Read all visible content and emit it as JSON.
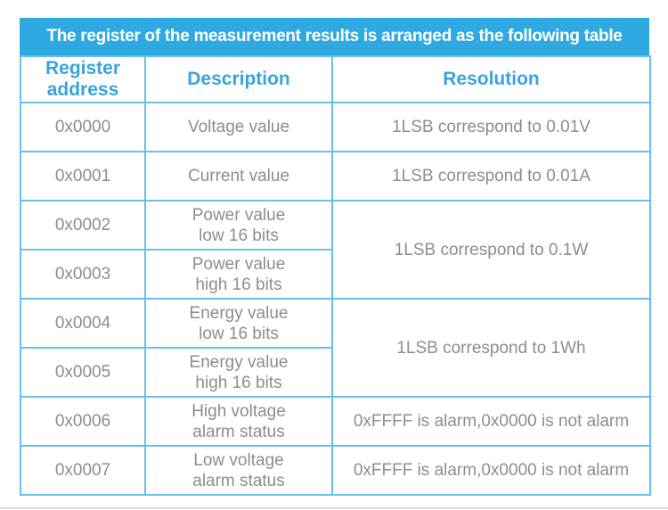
{
  "title": "The register of the measurement results is arranged as the following table",
  "columns": [
    {
      "label": "Register\naddress"
    },
    {
      "label": "Description"
    },
    {
      "label": "Resolution"
    }
  ],
  "rows": [
    {
      "address": "0x0000",
      "description": "Voltage value",
      "resolution": "1LSB correspond to 0.01V"
    },
    {
      "address": "0x0001",
      "description": "Current value",
      "resolution": "1LSB correspond to 0.01A"
    },
    {
      "address": "0x0002",
      "description": "Power value\nlow 16 bits",
      "resolution": "1LSB correspond to 0.1W"
    },
    {
      "address": "0x0003",
      "description": "Power value\nhigh 16 bits"
    },
    {
      "address": "0x0004",
      "description": "Energy value\nlow 16 bits",
      "resolution": "1LSB correspond to 1Wh"
    },
    {
      "address": "0x0005",
      "description": "Energy value\nhigh 16 bits"
    },
    {
      "address": "0x0006",
      "description": "High voltage\nalarm status",
      "resolution": "0xFFFF is alarm,0x0000 is not alarm"
    },
    {
      "address": "0x0007",
      "description": "Low voltage\nalarm status",
      "resolution": "0xFFFF is alarm,0x0000 is not alarm"
    }
  ],
  "colors": {
    "title_bar_bg": "#2fa9e1",
    "title_text": "#ffffff",
    "header_text": "#38a4dd",
    "cell_border": "#66c1ea",
    "body_text": "#8d8d8d",
    "background": "#ffffff"
  }
}
